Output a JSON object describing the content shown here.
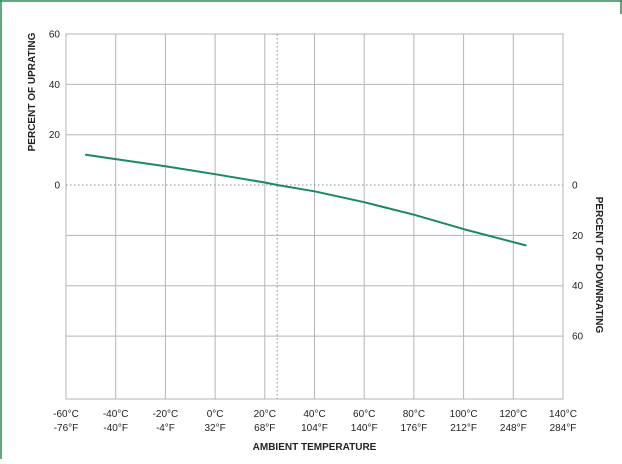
{
  "colors": {
    "frame": "#2e8b57",
    "series": "#1a8a5a",
    "grid": "#b5b5b5",
    "reference": "#8c8c8c"
  },
  "chart_data": {
    "type": "line",
    "title": "",
    "xlabel": "AMBIENT TEMPERATURE",
    "ylabel_left": "PERCENT OF UPRATING",
    "ylabel_right": "PERCENT OF DOWNRATING",
    "xlim": [
      -60,
      140
    ],
    "ylim": [
      -85,
      60
    ],
    "x_unit": "°C",
    "x_ticks_c": [
      "-60°C",
      "-40°C",
      "-20°C",
      "0°C",
      "20°C",
      "40°C",
      "60°C",
      "80°C",
      "100°C",
      "120°C",
      "140°C"
    ],
    "x_ticks_f": [
      "-76°F",
      "-40°F",
      "-4°F",
      "32°F",
      "68°F",
      "104°F",
      "140°F",
      "176°F",
      "212°F",
      "248°F",
      "284°F"
    ],
    "x_tick_values": [
      -60,
      -40,
      -20,
      0,
      20,
      40,
      60,
      80,
      100,
      120,
      140
    ],
    "left_ticks": [
      {
        "value": 60,
        "label": "60"
      },
      {
        "value": 40,
        "label": "40"
      },
      {
        "value": 20,
        "label": "20"
      },
      {
        "value": 0,
        "label": "0"
      }
    ],
    "right_ticks": [
      {
        "value": 0,
        "label": "0"
      },
      {
        "value": -20,
        "label": "20"
      },
      {
        "value": -40,
        "label": "40"
      },
      {
        "value": -60,
        "label": "60"
      }
    ],
    "grid_y": [
      60,
      40,
      20,
      -20,
      -40,
      -60
    ],
    "reference_lines": {
      "y": 0,
      "x": 25
    },
    "grid": true,
    "legend": "none",
    "series": [
      {
        "x": [
          -52,
          -40,
          -20,
          0,
          20,
          25,
          40,
          60,
          80,
          100,
          125
        ],
        "y": [
          12,
          10.3,
          7.5,
          4.3,
          1,
          0,
          -2.5,
          -6.8,
          -11.8,
          -17.5,
          -24
        ]
      }
    ]
  }
}
